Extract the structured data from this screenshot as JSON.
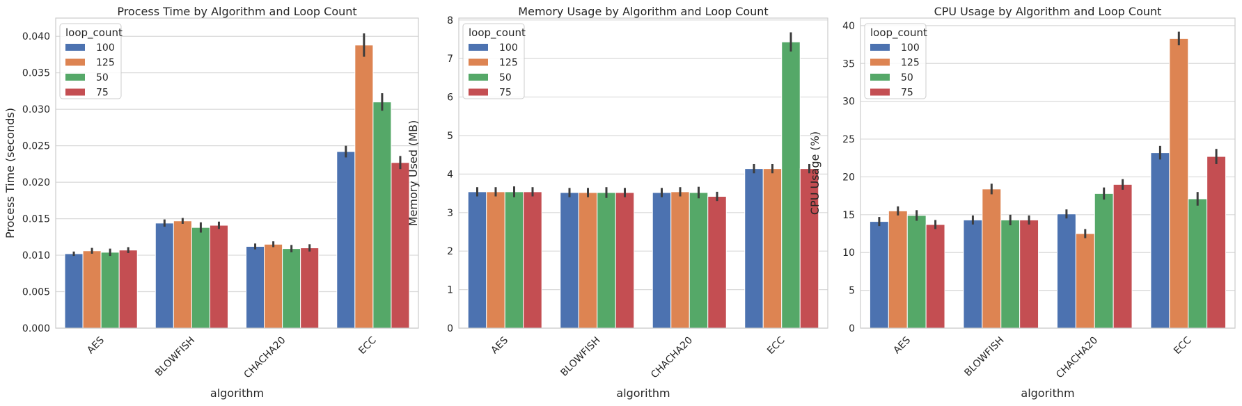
{
  "chart_data": [
    {
      "type": "bar",
      "title": "Process Time by Algorithm and Loop Count",
      "xlabel": "algorithm",
      "ylabel": "Process Time (seconds)",
      "categories": [
        "AES",
        "BLOWFISH",
        "CHACHA20",
        "ECC"
      ],
      "ylim": [
        0,
        0.0425
      ],
      "yticks": [
        0.0,
        0.005,
        0.01,
        0.015,
        0.02,
        0.025,
        0.03,
        0.035,
        0.04
      ],
      "ytick_labels": [
        "0.000",
        "0.005",
        "0.010",
        "0.015",
        "0.020",
        "0.025",
        "0.030",
        "0.035",
        "0.040"
      ],
      "legend": {
        "title": "loop_count",
        "position": "top-left"
      },
      "grid": "horizontal",
      "series": [
        {
          "name": "100",
          "values": [
            0.0102,
            0.0144,
            0.0112,
            0.0242
          ],
          "errors": [
            0.0003,
            0.0005,
            0.0004,
            0.0008
          ]
        },
        {
          "name": "125",
          "values": [
            0.0106,
            0.0147,
            0.0115,
            0.0388
          ],
          "errors": [
            0.0004,
            0.0004,
            0.0004,
            0.0016
          ]
        },
        {
          "name": "50",
          "values": [
            0.0104,
            0.0138,
            0.0109,
            0.031
          ],
          "errors": [
            0.0005,
            0.0007,
            0.0005,
            0.0012
          ]
        },
        {
          "name": "75",
          "values": [
            0.0107,
            0.0141,
            0.011,
            0.0227
          ],
          "errors": [
            0.0004,
            0.0005,
            0.0005,
            0.0009
          ]
        }
      ]
    },
    {
      "type": "bar",
      "title": "Memory Usage by Algorithm and Loop Count",
      "xlabel": "algorithm",
      "ylabel": "Memory Used (MB)",
      "categories": [
        "AES",
        "BLOWFISH",
        "CHACHA20",
        "ECC"
      ],
      "ylim": [
        0,
        8.05
      ],
      "yticks": [
        0,
        1,
        2,
        3,
        4,
        5,
        6,
        7,
        8
      ],
      "ytick_labels": [
        "0",
        "1",
        "2",
        "3",
        "4",
        "5",
        "6",
        "7",
        "8"
      ],
      "legend": {
        "title": "loop_count",
        "position": "top-left"
      },
      "grid": "horizontal",
      "series": [
        {
          "name": "100",
          "values": [
            3.54,
            3.52,
            3.52,
            4.14
          ],
          "errors": [
            0.12,
            0.12,
            0.12,
            0.12
          ]
        },
        {
          "name": "125",
          "values": [
            3.54,
            3.52,
            3.54,
            4.14
          ],
          "errors": [
            0.12,
            0.12,
            0.12,
            0.12
          ]
        },
        {
          "name": "50",
          "values": [
            3.54,
            3.52,
            3.52,
            7.43
          ],
          "errors": [
            0.14,
            0.14,
            0.15,
            0.25
          ]
        },
        {
          "name": "75",
          "values": [
            3.54,
            3.52,
            3.42,
            4.14
          ],
          "errors": [
            0.12,
            0.12,
            0.12,
            0.12
          ]
        }
      ]
    },
    {
      "type": "bar",
      "title": "CPU Usage by Algorithm and Loop Count",
      "xlabel": "algorithm",
      "ylabel": "CPU Usage (%)",
      "categories": [
        "AES",
        "BLOWFISH",
        "CHACHA20",
        "ECC"
      ],
      "ylim": [
        0,
        41
      ],
      "yticks": [
        0,
        5,
        10,
        15,
        20,
        25,
        30,
        35,
        40
      ],
      "ytick_labels": [
        "0",
        "5",
        "10",
        "15",
        "20",
        "25",
        "30",
        "35",
        "40"
      ],
      "legend": {
        "title": "loop_count",
        "position": "top-left"
      },
      "grid": "horizontal",
      "series": [
        {
          "name": "100",
          "values": [
            14.1,
            14.3,
            15.1,
            23.2
          ],
          "errors": [
            0.6,
            0.6,
            0.6,
            0.9
          ]
        },
        {
          "name": "125",
          "values": [
            15.5,
            18.4,
            12.5,
            38.3
          ],
          "errors": [
            0.6,
            0.7,
            0.6,
            0.9
          ]
        },
        {
          "name": "50",
          "values": [
            14.9,
            14.3,
            17.8,
            17.1
          ],
          "errors": [
            0.7,
            0.7,
            0.8,
            0.9
          ]
        },
        {
          "name": "75",
          "values": [
            13.7,
            14.3,
            19.0,
            22.7
          ],
          "errors": [
            0.6,
            0.6,
            0.7,
            1.0
          ]
        }
      ]
    }
  ],
  "colors": [
    "#4c72b0",
    "#dd8452",
    "#55a868",
    "#c44e52"
  ]
}
